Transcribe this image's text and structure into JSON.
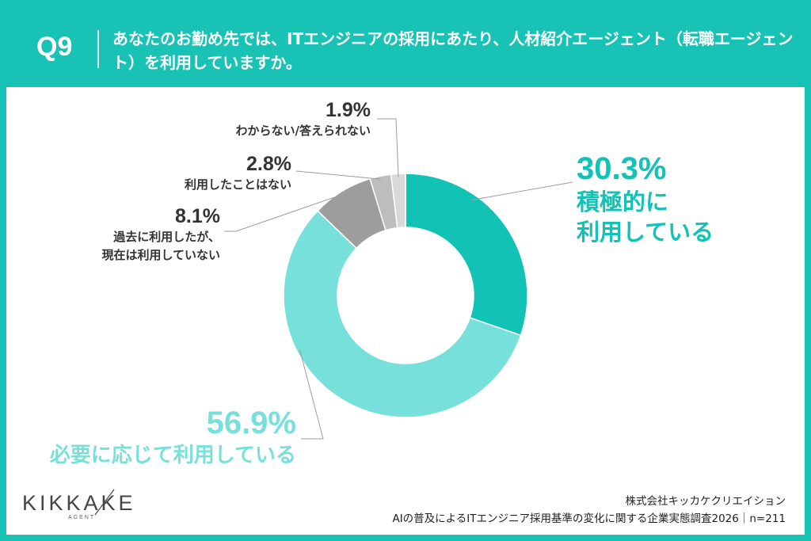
{
  "header": {
    "question_number": "Q9",
    "question_text": "あなたのお勤め先では、ITエンジニアの採用にあたり、人材紹介エージェント（転職エージェント）を利用していますか。"
  },
  "colors": {
    "background": "#18c3b6",
    "card": "#ffffff",
    "actively": "#12c3b5",
    "as_needed": "#78e0da",
    "past": "#9d9d9d",
    "never": "#bdbdbd",
    "unknown": "#d9d9d9",
    "leader_line": "#9e9e9e"
  },
  "chart_data": {
    "type": "pie",
    "variant": "donut",
    "title": "",
    "series": [
      {
        "name": "",
        "categories": [
          "積極的に利用している",
          "必要に応じて利用している",
          "過去に利用したが、現在は利用していない",
          "利用したことはない",
          "わからない/答えられない"
        ],
        "values": [
          30.3,
          56.9,
          8.1,
          2.8,
          1.9
        ],
        "value_labels": [
          "30.3%",
          "56.9%",
          "8.1%",
          "2.8%",
          "1.9%"
        ]
      }
    ],
    "start": "12 o'clock",
    "direction": "clockwise",
    "legend": "none (direct labels with leader lines)"
  },
  "labels": {
    "actively": {
      "pct": "30.3%",
      "line1": "積極的に",
      "line2": "利用している"
    },
    "as_needed": {
      "pct": "56.9%",
      "line1": "必要に応じて利用している"
    },
    "past": {
      "pct": "8.1%",
      "line1": "過去に利用したが、",
      "line2": "現在は利用していない"
    },
    "never": {
      "pct": "2.8%",
      "line1": "利用したことはない"
    },
    "unknown": {
      "pct": "1.9%",
      "line1": "わからない/答えられない"
    }
  },
  "logo": {
    "text": "KIKKAKE",
    "sub": "AGENT"
  },
  "footer": {
    "company": "株式会社キッカケクリエイション",
    "survey": "AIの普及によるITエンジニア採用基準の変化に関する企業実態調査2026｜n=211"
  }
}
